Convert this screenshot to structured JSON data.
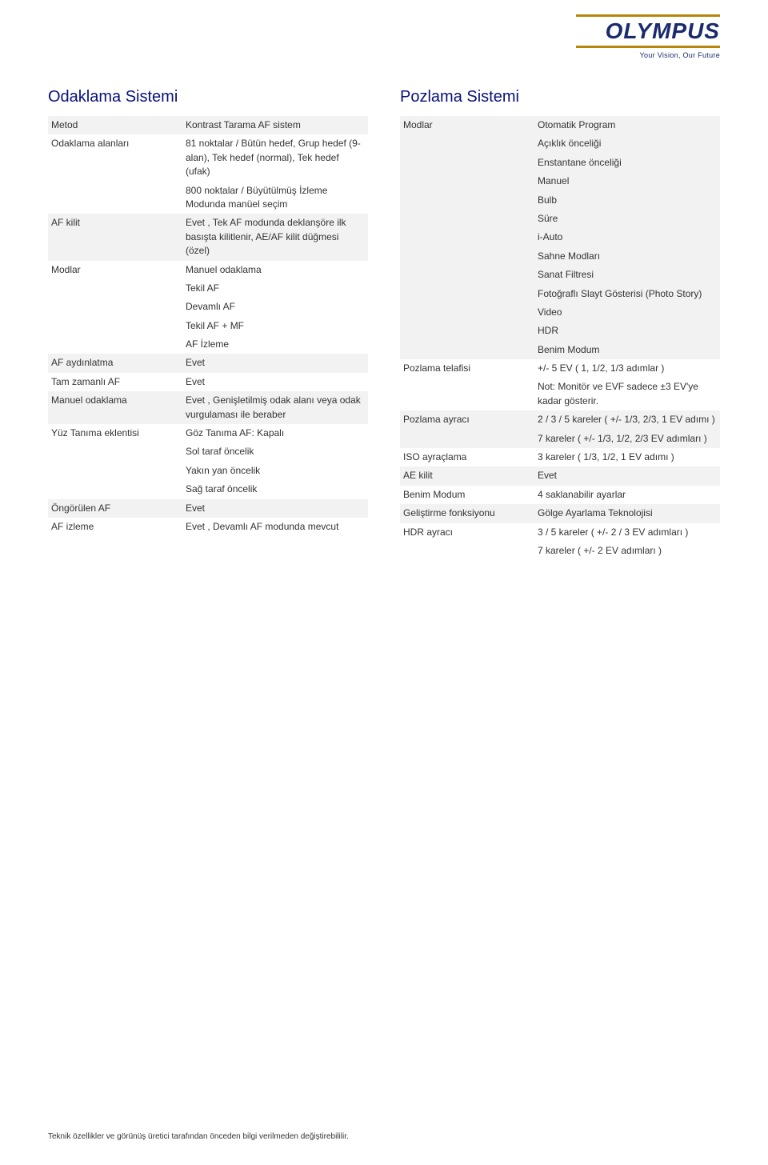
{
  "logo": {
    "brand": "OLYMPUS",
    "tagline": "Your Vision, Our Future"
  },
  "left_section": {
    "title": "Odaklama Sistemi",
    "rows": [
      {
        "label": "Metod",
        "value": "Kontrast Tarama AF sistem",
        "alt": true
      },
      {
        "label": "Odaklama alanları",
        "value": "81 noktalar / Bütün hedef, Grup hedef (9-alan), Tek hedef (normal), Tek hedef (ufak)\n800 noktalar / Büyütülmüş İzleme Modunda manüel seçim",
        "alt": false
      },
      {
        "label": "AF kilit",
        "value": "Evet , Tek AF modunda deklanşöre ilk basışta kilitlenir, AE/AF kilit düğmesi (özel)",
        "alt": true
      },
      {
        "label": "Modlar",
        "value": "Manuel odaklama\nTekil AF\nDevamlı AF\nTekil AF + MF\nAF İzleme",
        "alt": false
      },
      {
        "label": "AF aydınlatma",
        "value": "Evet",
        "alt": true
      },
      {
        "label": "Tam zamanlı AF",
        "value": "Evet",
        "alt": false
      },
      {
        "label": "Manuel odaklama",
        "value": "Evet , Genişletilmiş odak alanı veya odak vurgulaması ile beraber",
        "alt": true
      },
      {
        "label": "Yüz Tanıma eklentisi",
        "value": "Göz Tanıma AF: Kapalı\nSol taraf öncelik\nYakın yan öncelik\nSağ taraf öncelik",
        "alt": false
      },
      {
        "label": "Öngörülen AF",
        "value": "Evet",
        "alt": true
      },
      {
        "label": "AF izleme",
        "value": "Evet , Devamlı AF modunda mevcut",
        "alt": false
      }
    ]
  },
  "right_section": {
    "title": "Pozlama Sistemi",
    "rows": [
      {
        "label": "Modlar",
        "value": "Otomatik Program\nAçıklık önceliği\nEnstantane önceliği\nManuel\nBulb\nSüre\ni-Auto\nSahne Modları\nSanat Filtresi\nFotoğraflı Slayt Gösterisi (Photo Story)\nVideo\nHDR\nBenim Modum",
        "alt": true
      },
      {
        "label": "Pozlama telafisi",
        "value": "+/- 5 EV ( 1, 1/2, 1/3 adımlar )\nNot: Monitör ve EVF sadece ±3 EV'ye kadar gösterir.",
        "alt": false
      },
      {
        "label": "Pozlama ayracı",
        "value": "2 / 3 / 5 kareler ( +/- 1/3, 2/3, 1 EV adımı )\n7 kareler ( +/- 1/3, 1/2, 2/3 EV adımları )",
        "alt": true
      },
      {
        "label": "ISO ayraçlama",
        "value": "3 kareler ( 1/3, 1/2, 1 EV adımı )",
        "alt": false
      },
      {
        "label": "AE kilit",
        "value": "Evet",
        "alt": true
      },
      {
        "label": "Benim Modum",
        "value": "4 saklanabilir ayarlar",
        "alt": false
      },
      {
        "label": "Geliştirme fonksiyonu",
        "value": "Gölge Ayarlama Teknolojisi",
        "alt": true
      },
      {
        "label": "HDR ayracı",
        "value": "3 / 5 kareler ( +/- 2 / 3 EV adımları )\n7 kareler ( +/- 2 EV adımları )",
        "alt": false
      }
    ]
  },
  "footer": "Teknik özellikler ve görünüş üretici tarafından önceden bilgi verilmeden değiştirebililir."
}
